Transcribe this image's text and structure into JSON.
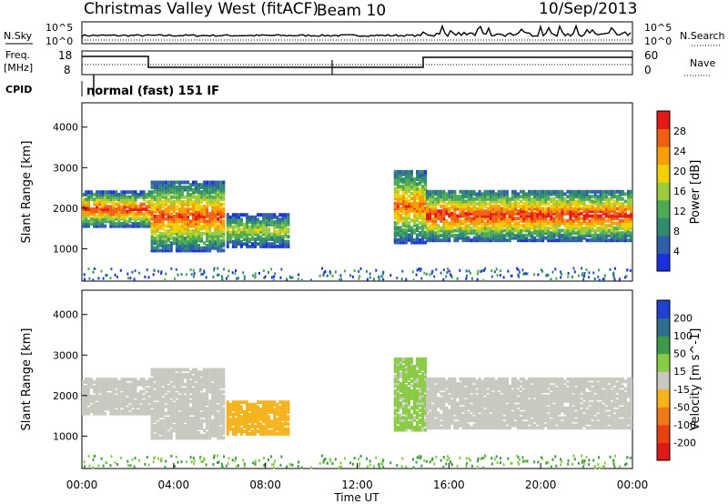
{
  "header": {
    "station": "Christmas Valley West (fitACF)",
    "beam": "Beam 10",
    "date": "10/Sep/2013"
  },
  "params": {
    "nsky_label": "N.Sky",
    "nsearch_label": "N.Search",
    "freq_label": "Freq.",
    "freq_unit": "[MHz]",
    "nave_label": "Nave",
    "cpid_label": "CPID",
    "cpid_value": "normal (fast) 151 IF",
    "noise_ticks": [
      "10^5",
      "10^0"
    ],
    "freq_ticks": [
      "18",
      "8"
    ],
    "nave_ticks": [
      "60",
      "0"
    ]
  },
  "colors": {
    "power_scale": [
      "#1a2fe0",
      "#2e5ea8",
      "#2f8a6e",
      "#4caa55",
      "#9ccc3a",
      "#f0d000",
      "#f5a000",
      "#f06010",
      "#e81818"
    ],
    "velocity_scale": [
      "#2040d0",
      "#2e6e8e",
      "#3d9a4a",
      "#88cc44",
      "#c8c8c0",
      "#f5b21a",
      "#f07818",
      "#e84010",
      "#e01818"
    ],
    "ground_scatter": "#c8c8c0"
  },
  "chart_data": [
    {
      "type": "heatmap",
      "name_note": "power panel",
      "ylabel": "Slant Range [km]",
      "ylim": [
        200,
        4600
      ],
      "yticks": [
        "1000",
        "2000",
        "3000",
        "4000"
      ],
      "xlim": [
        0,
        24
      ],
      "colorbar_label": "Power [dB]",
      "colorbar_ticks": [
        "28",
        "24",
        "20",
        "16",
        "12",
        "8",
        "4"
      ],
      "colorbar_range": [
        0,
        32
      ],
      "regions": [
        {
          "t0": 0,
          "t1": 3,
          "r0": 1600,
          "r1": 2450,
          "peak": 30
        },
        {
          "t0": 3,
          "t1": 6.2,
          "r0": 1000,
          "r1": 2700,
          "peak": 28
        },
        {
          "t0": 6.3,
          "t1": 9,
          "r0": 1100,
          "r1": 1900,
          "peak": 18
        },
        {
          "t0": 13.6,
          "t1": 15,
          "r0": 1200,
          "r1": 3000,
          "peak": 26
        },
        {
          "t0": 15,
          "t1": 24,
          "r0": 1250,
          "r1": 2500,
          "peak": 30
        }
      ]
    },
    {
      "type": "heatmap",
      "name_note": "velocity panel",
      "xlabel": "Time UT",
      "ylabel": "Slant Range [km]",
      "ylim": [
        200,
        4600
      ],
      "yticks": [
        "1000",
        "2000",
        "3000",
        "4000"
      ],
      "xticks": [
        "00:00",
        "04:00",
        "08:00",
        "12:00",
        "16:00",
        "20:00",
        "00:00"
      ],
      "xlim": [
        0,
        24
      ],
      "colorbar_label": "Velocity [m s^-1]",
      "colorbar_ticks": [
        "200",
        "100",
        "50",
        "15",
        "-15",
        "-50",
        "-100",
        "-200"
      ],
      "colorbar_range": [
        -250,
        250
      ],
      "regions": [
        {
          "t0": 0,
          "t1": 3,
          "r0": 1700,
          "r1": 2400,
          "kind": "ground"
        },
        {
          "t0": 3,
          "t1": 6.2,
          "r0": 1050,
          "r1": 2700,
          "kind": "ground"
        },
        {
          "t0": 6.3,
          "t1": 9,
          "r0": 1100,
          "r1": 1800,
          "kind": "velocity",
          "value": -60
        },
        {
          "t0": 13.6,
          "t1": 15,
          "r0": 1300,
          "r1": 3000,
          "kind": "velocity",
          "value": 40
        },
        {
          "t0": 15,
          "t1": 24,
          "r0": 1300,
          "r1": 2400,
          "kind": "ground"
        }
      ]
    }
  ]
}
